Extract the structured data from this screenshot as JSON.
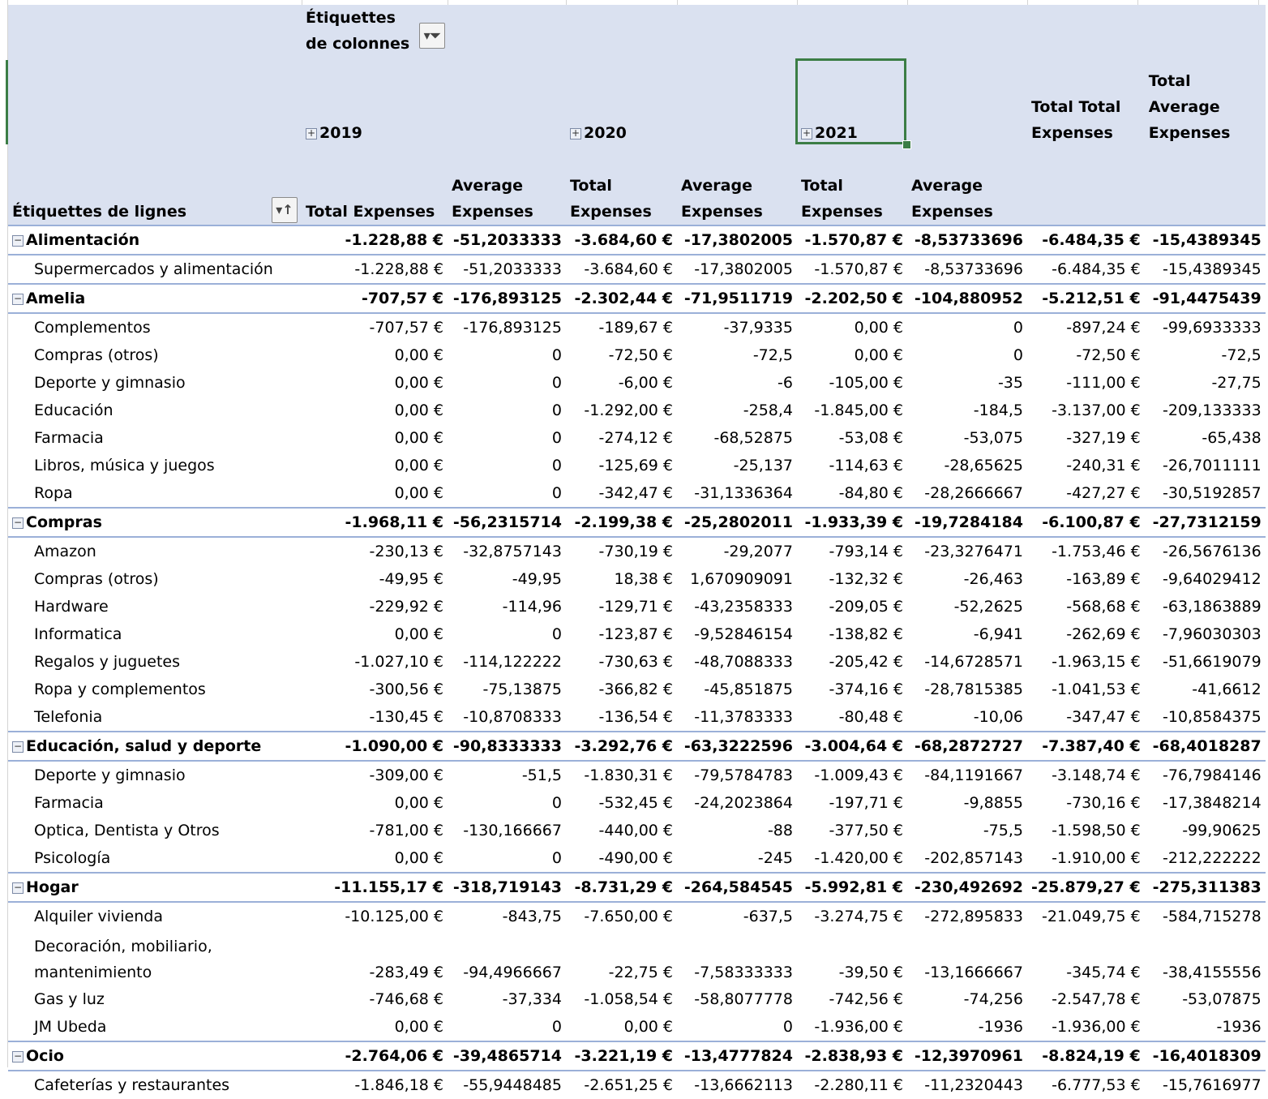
{
  "header": {
    "column_labels": "Étiquettes de colonnes",
    "row_labels": "Étiquettes de lignes",
    "years": [
      "2019",
      "2020",
      "2021"
    ],
    "total_total": "Total Total Expenses",
    "total_average": "Total Average Expenses",
    "measure_total": "Total Expenses",
    "measure_average": "Average Expenses"
  },
  "rows": [
    {
      "type": "group",
      "label": "Alimentación",
      "v": [
        "-1.228,88 €",
        "-51,2033333",
        "-3.684,60 €",
        "-17,3802005",
        "-1.570,87 €",
        "-8,53733696",
        "-6.484,35 €",
        "-15,4389345"
      ]
    },
    {
      "type": "child",
      "label": "Supermercados y alimentación",
      "v": [
        "-1.228,88 €",
        "-51,2033333",
        "-3.684,60 €",
        "-17,3802005",
        "-1.570,87 €",
        "-8,53733696",
        "-6.484,35 €",
        "-15,4389345"
      ]
    },
    {
      "type": "group",
      "label": "Amelia",
      "v": [
        "-707,57 €",
        "-176,893125",
        "-2.302,44 €",
        "-71,9511719",
        "-2.202,50 €",
        "-104,880952",
        "-5.212,51 €",
        "-91,4475439"
      ]
    },
    {
      "type": "child",
      "label": "Complementos",
      "v": [
        "-707,57 €",
        "-176,893125",
        "-189,67 €",
        "-37,9335",
        "0,00 €",
        "0",
        "-897,24 €",
        "-99,6933333"
      ]
    },
    {
      "type": "child",
      "label": "Compras (otros)",
      "v": [
        "0,00 €",
        "0",
        "-72,50 €",
        "-72,5",
        "0,00 €",
        "0",
        "-72,50 €",
        "-72,5"
      ]
    },
    {
      "type": "child",
      "label": "Deporte y gimnasio",
      "v": [
        "0,00 €",
        "0",
        "-6,00 €",
        "-6",
        "-105,00 €",
        "-35",
        "-111,00 €",
        "-27,75"
      ]
    },
    {
      "type": "child",
      "label": "Educación",
      "v": [
        "0,00 €",
        "0",
        "-1.292,00 €",
        "-258,4",
        "-1.845,00 €",
        "-184,5",
        "-3.137,00 €",
        "-209,133333"
      ]
    },
    {
      "type": "child",
      "label": "Farmacia",
      "v": [
        "0,00 €",
        "0",
        "-274,12 €",
        "-68,52875",
        "-53,08 €",
        "-53,075",
        "-327,19 €",
        "-65,438"
      ]
    },
    {
      "type": "child",
      "label": "Libros, música y juegos",
      "v": [
        "0,00 €",
        "0",
        "-125,69 €",
        "-25,137",
        "-114,63 €",
        "-28,65625",
        "-240,31 €",
        "-26,7011111"
      ]
    },
    {
      "type": "child",
      "label": "Ropa",
      "v": [
        "0,00 €",
        "0",
        "-342,47 €",
        "-31,1336364",
        "-84,80 €",
        "-28,2666667",
        "-427,27 €",
        "-30,5192857"
      ]
    },
    {
      "type": "group",
      "label": "Compras",
      "v": [
        "-1.968,11 €",
        "-56,2315714",
        "-2.199,38 €",
        "-25,2802011",
        "-1.933,39 €",
        "-19,7284184",
        "-6.100,87 €",
        "-27,7312159"
      ]
    },
    {
      "type": "child",
      "label": "Amazon",
      "v": [
        "-230,13 €",
        "-32,8757143",
        "-730,19 €",
        "-29,2077",
        "-793,14 €",
        "-23,3276471",
        "-1.753,46 €",
        "-26,5676136"
      ]
    },
    {
      "type": "child",
      "label": "Compras (otros)",
      "v": [
        "-49,95 €",
        "-49,95",
        "18,38 €",
        "1,670909091",
        "-132,32 €",
        "-26,463",
        "-163,89 €",
        "-9,64029412"
      ]
    },
    {
      "type": "child",
      "label": "Hardware",
      "v": [
        "-229,92 €",
        "-114,96",
        "-129,71 €",
        "-43,2358333",
        "-209,05 €",
        "-52,2625",
        "-568,68 €",
        "-63,1863889"
      ]
    },
    {
      "type": "child",
      "label": "Informatica",
      "v": [
        "0,00 €",
        "0",
        "-123,87 €",
        "-9,52846154",
        "-138,82 €",
        "-6,941",
        "-262,69 €",
        "-7,96030303"
      ]
    },
    {
      "type": "child",
      "label": "Regalos y juguetes",
      "v": [
        "-1.027,10 €",
        "-114,122222",
        "-730,63 €",
        "-48,7088333",
        "-205,42 €",
        "-14,6728571",
        "-1.963,15 €",
        "-51,6619079"
      ]
    },
    {
      "type": "child",
      "label": "Ropa y complementos",
      "v": [
        "-300,56 €",
        "-75,13875",
        "-366,82 €",
        "-45,851875",
        "-374,16 €",
        "-28,7815385",
        "-1.041,53 €",
        "-41,6612"
      ]
    },
    {
      "type": "child",
      "label": "Telefonia",
      "v": [
        "-130,45 €",
        "-10,8708333",
        "-136,54 €",
        "-11,3783333",
        "-80,48 €",
        "-10,06",
        "-347,47 €",
        "-10,8584375"
      ]
    },
    {
      "type": "group",
      "label": "Educación, salud y deporte",
      "v": [
        "-1.090,00 €",
        "-90,8333333",
        "-3.292,76 €",
        "-63,3222596",
        "-3.004,64 €",
        "-68,2872727",
        "-7.387,40 €",
        "-68,4018287"
      ]
    },
    {
      "type": "child",
      "label": "Deporte y gimnasio",
      "v": [
        "-309,00 €",
        "-51,5",
        "-1.830,31 €",
        "-79,5784783",
        "-1.009,43 €",
        "-84,1191667",
        "-3.148,74 €",
        "-76,7984146"
      ]
    },
    {
      "type": "child",
      "label": "Farmacia",
      "v": [
        "0,00 €",
        "0",
        "-532,45 €",
        "-24,2023864",
        "-197,71 €",
        "-9,8855",
        "-730,16 €",
        "-17,3848214"
      ]
    },
    {
      "type": "child",
      "label": "Optica, Dentista y Otros",
      "v": [
        "-781,00 €",
        "-130,166667",
        "-440,00 €",
        "-88",
        "-377,50 €",
        "-75,5",
        "-1.598,50 €",
        "-99,90625"
      ]
    },
    {
      "type": "child",
      "label": "Psicología",
      "v": [
        "0,00 €",
        "0",
        "-490,00 €",
        "-245",
        "-1.420,00 €",
        "-202,857143",
        "-1.910,00 €",
        "-212,222222"
      ]
    },
    {
      "type": "group",
      "label": "Hogar",
      "v": [
        "-11.155,17 €",
        "-318,719143",
        "-8.731,29 €",
        "-264,584545",
        "-5.992,81 €",
        "-230,492692",
        "-25.879,27 €",
        "-275,311383"
      ]
    },
    {
      "type": "child",
      "label": "Alquiler vivienda",
      "v": [
        "-10.125,00 €",
        "-843,75",
        "-7.650,00 €",
        "-637,5",
        "-3.274,75 €",
        "-272,895833",
        "-21.049,75 €",
        "-584,715278"
      ]
    },
    {
      "type": "child",
      "tall": true,
      "label": "Decoración, mobiliario, mantenimiento",
      "v": [
        "-283,49 €",
        "-94,4966667",
        "-22,75 €",
        "-7,58333333",
        "-39,50 €",
        "-13,1666667",
        "-345,74 €",
        "-38,4155556"
      ]
    },
    {
      "type": "child",
      "label": "Gas y luz",
      "v": [
        "-746,68 €",
        "-37,334",
        "-1.058,54 €",
        "-58,8077778",
        "-742,56 €",
        "-74,256",
        "-2.547,78 €",
        "-53,07875"
      ]
    },
    {
      "type": "child",
      "label": "JM Ubeda",
      "v": [
        "0,00 €",
        "0",
        "0,00 €",
        "0",
        "-1.936,00 €",
        "-1936",
        "-1.936,00 €",
        "-1936"
      ]
    },
    {
      "type": "group",
      "label": "Ocio",
      "v": [
        "-2.764,06 €",
        "-39,4865714",
        "-3.221,19 €",
        "-13,4777824",
        "-2.838,93 €",
        "-12,3970961",
        "-8.824,19 €",
        "-16,4018309"
      ]
    },
    {
      "type": "child",
      "label": "Cafeterías y restaurantes",
      "v": [
        "-1.846,18 €",
        "-55,9448485",
        "-2.651,25 €",
        "-13,6662113",
        "-2.280,11 €",
        "-11,2320443",
        "-6.777,53 €",
        "-15,7616977"
      ]
    }
  ]
}
